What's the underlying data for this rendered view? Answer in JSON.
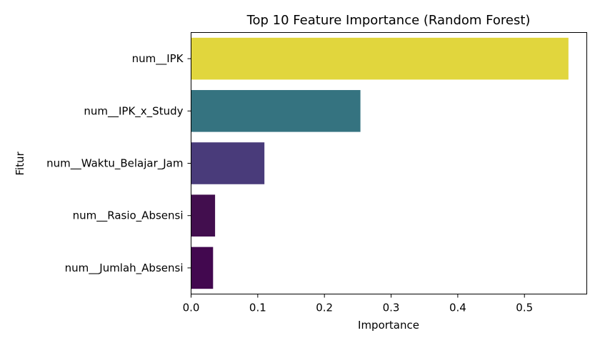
{
  "chart_data": {
    "type": "bar",
    "orientation": "horizontal",
    "title": "Top 10 Feature Importance (Random Forest)",
    "xlabel": "Importance",
    "ylabel": "Fitur",
    "categories": [
      "num__IPK",
      "num__IPK_x_Study",
      "num__Waktu_Belajar_Jam",
      "num__Rasio_Absensi",
      "num__Jumlah_Absensi"
    ],
    "values": [
      0.566,
      0.254,
      0.11,
      0.036,
      0.033
    ],
    "colors": [
      "#e1d63d",
      "#357380",
      "#493b7a",
      "#420e4e",
      "#42084f"
    ],
    "xlim": [
      0,
      0.5935
    ],
    "xticks": [
      0.0,
      0.1,
      0.2,
      0.3,
      0.4,
      0.5
    ],
    "xtick_labels": [
      "0.0",
      "0.1",
      "0.2",
      "0.3",
      "0.4",
      "0.5"
    ],
    "grid": false,
    "legend": "none"
  }
}
